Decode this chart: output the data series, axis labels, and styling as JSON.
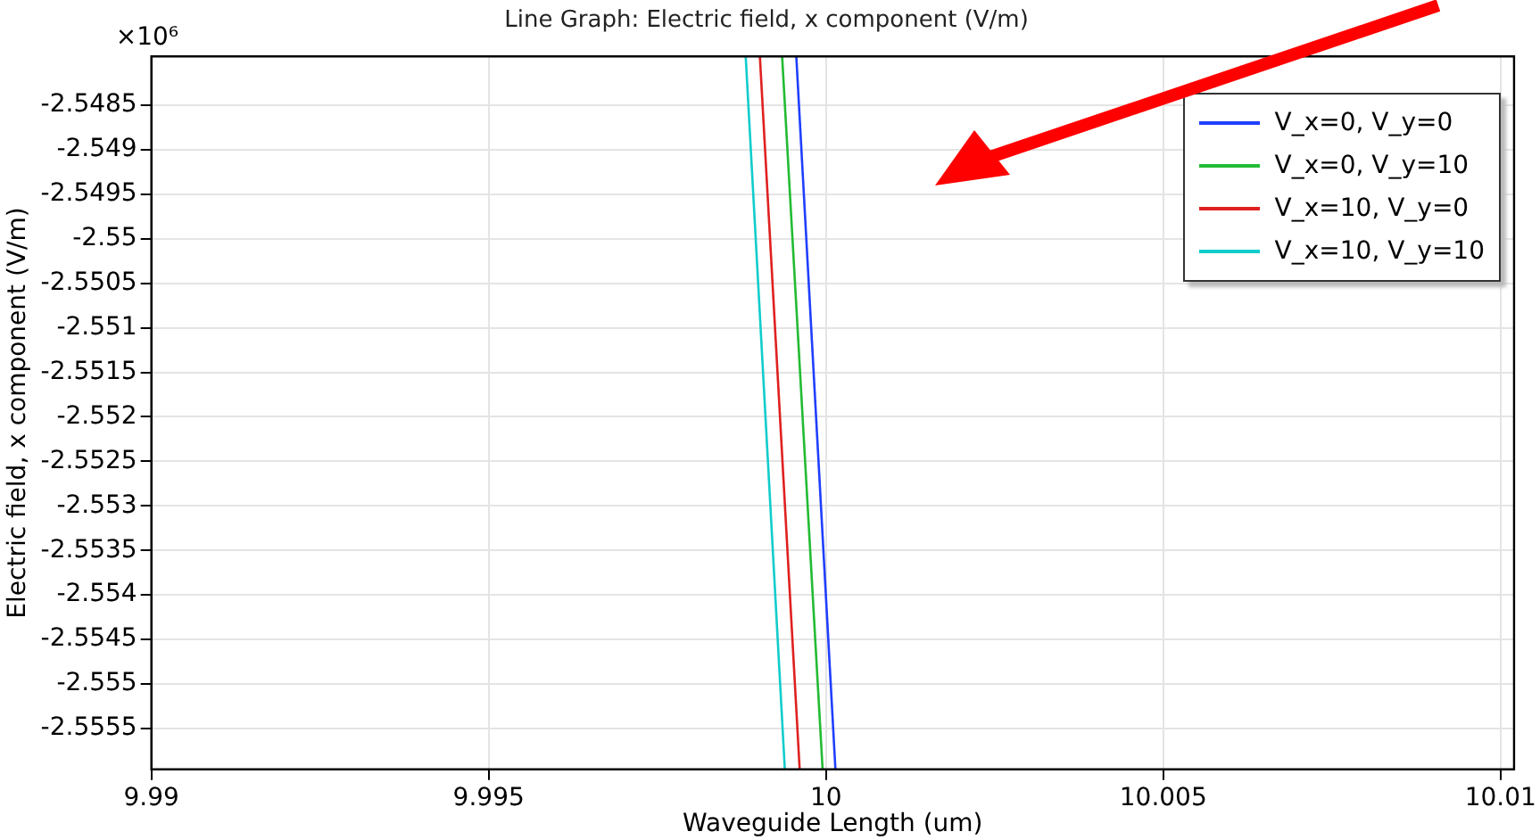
{
  "chart_data": {
    "type": "line",
    "title": "Line Graph: Electric field, x component (V/m)",
    "xlabel": "Waveguide Length (um)",
    "ylabel": "Electric field, x component (V/m)",
    "annotations": [
      "×10⁶"
    ],
    "series": [
      {
        "name": "V_x=0, V_y=0",
        "color": "#1f3fff",
        "x": [
          9.99956,
          10.00014
        ],
        "values": [
          -2.54795,
          -2.55596
        ]
      },
      {
        "name": "V_x=0, V_y=10",
        "color": "#22bb33",
        "x": [
          9.99935,
          9.99995
        ],
        "values": [
          -2.54795,
          -2.55596
        ]
      },
      {
        "name": "V_x=10, V_y=0",
        "color": "#e02020",
        "x": [
          9.99902,
          9.99961
        ],
        "values": [
          -2.54795,
          -2.55596
        ]
      },
      {
        "name": "V_x=10, V_y=10",
        "color": "#11cccc",
        "x": [
          9.99881,
          9.99939
        ],
        "values": [
          -2.54795,
          -2.55596
        ]
      }
    ],
    "xlim": [
      9.99,
      10.0102
    ],
    "xticks": [
      9.99,
      9.995,
      10,
      10.005,
      10.01
    ],
    "ylim": [
      -2.55596,
      -2.54795
    ],
    "yticks": [
      -2.5485,
      -2.549,
      -2.5495,
      -2.55,
      -2.5505,
      -2.551,
      -2.5515,
      -2.552,
      -2.5525,
      -2.553,
      -2.5535,
      -2.554,
      -2.5545,
      -2.555,
      -2.5555
    ],
    "grid": true,
    "legend": "top right",
    "marker": "none",
    "line_style": "solid"
  }
}
